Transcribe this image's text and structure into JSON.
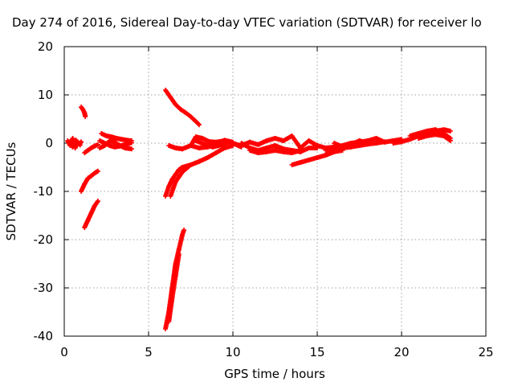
{
  "chart_data": {
    "type": "scatter",
    "title": "Day 274 of 2016, Sidereal Day-to-day VTEC variation (SDTVAR) for receiver lo",
    "xlabel": "GPS time / hours",
    "ylabel": "SDTVAR / TECUs",
    "xlim": [
      0,
      25
    ],
    "ylim": [
      -40,
      20
    ],
    "x_ticks": [
      0,
      5,
      10,
      15,
      20,
      25
    ],
    "y_ticks": [
      -40,
      -30,
      -20,
      -10,
      0,
      10,
      20
    ],
    "x_tick_labels": [
      "0",
      "5",
      "10",
      "15",
      "20",
      "25"
    ],
    "y_tick_labels": [
      "-40",
      "-30",
      "-20",
      "-10",
      "0",
      "10",
      "20"
    ],
    "grid": true,
    "marker": "+",
    "color": "#ff0000",
    "series": [
      {
        "segments": [
          [
            [
              0.2,
              0.5
            ],
            [
              0.35,
              -0.5
            ],
            [
              0.5,
              1.0
            ],
            [
              0.65,
              -1.0
            ],
            [
              0.8,
              0.2
            ],
            [
              0.95,
              -0.4
            ]
          ],
          [
            [
              0.3,
              0.3
            ],
            [
              0.5,
              -0.8
            ],
            [
              0.7,
              0.6
            ],
            [
              0.9,
              -0.2
            ],
            [
              1.0,
              0.3
            ]
          ],
          [
            [
              1.0,
              7.5
            ],
            [
              1.1,
              7.0
            ],
            [
              1.2,
              6.3
            ],
            [
              1.25,
              5.5
            ]
          ],
          [
            [
              1.0,
              -10.0
            ],
            [
              1.2,
              -8.5
            ],
            [
              1.4,
              -7.3
            ],
            [
              1.6,
              -6.8
            ],
            [
              1.8,
              -6.2
            ],
            [
              2.0,
              -5.8
            ]
          ],
          [
            [
              1.2,
              -17.5
            ],
            [
              1.4,
              -16.0
            ],
            [
              1.6,
              -14.5
            ],
            [
              1.8,
              -13.0
            ],
            [
              2.0,
              -12.0
            ]
          ],
          [
            [
              1.2,
              -2.0
            ],
            [
              1.4,
              -1.5
            ],
            [
              1.6,
              -1.0
            ],
            [
              1.8,
              -0.6
            ],
            [
              2.0,
              -0.3
            ]
          ],
          [
            [
              2.2,
              2.0
            ],
            [
              2.5,
              1.5
            ],
            [
              2.8,
              1.3
            ],
            [
              3.1,
              1.0
            ],
            [
              3.4,
              0.8
            ],
            [
              3.7,
              0.6
            ],
            [
              4.0,
              0.5
            ]
          ],
          [
            [
              2.1,
              0.5
            ],
            [
              2.4,
              0.0
            ],
            [
              2.7,
              -0.5
            ],
            [
              3.0,
              -0.8
            ],
            [
              3.3,
              -0.6
            ],
            [
              3.6,
              -0.3
            ],
            [
              4.0,
              0.1
            ]
          ],
          [
            [
              2.1,
              -1.0
            ],
            [
              2.4,
              -0.5
            ],
            [
              2.7,
              0.5
            ],
            [
              3.0,
              0.2
            ],
            [
              3.3,
              -0.5
            ],
            [
              3.6,
              -1.0
            ],
            [
              4.0,
              -1.2
            ]
          ],
          [
            [
              6.0,
              11.0
            ],
            [
              6.3,
              9.5
            ],
            [
              6.6,
              8.0
            ],
            [
              6.9,
              7.0
            ],
            [
              7.2,
              6.3
            ],
            [
              7.5,
              5.5
            ],
            [
              7.8,
              4.5
            ],
            [
              8.0,
              3.8
            ]
          ],
          [
            [
              6.0,
              -11.0
            ],
            [
              6.2,
              -9.0
            ],
            [
              6.4,
              -7.5
            ],
            [
              6.6,
              -6.5
            ],
            [
              6.8,
              -5.5
            ],
            [
              7.0,
              -5.0
            ],
            [
              7.5,
              -4.5
            ],
            [
              8.0,
              -3.8
            ],
            [
              8.5,
              -3.0
            ],
            [
              9.0,
              -2.0
            ],
            [
              9.5,
              -1.0
            ],
            [
              10.0,
              -0.5
            ]
          ],
          [
            [
              6.3,
              -11.0
            ],
            [
              6.6,
              -8.0
            ],
            [
              7.0,
              -6.0
            ],
            [
              7.5,
              -4.5
            ]
          ],
          [
            [
              6.0,
              -38.5
            ],
            [
              6.2,
              -35.0
            ],
            [
              6.4,
              -30.0
            ],
            [
              6.6,
              -25.0
            ],
            [
              6.8,
              -22.0
            ],
            [
              7.0,
              -19.0
            ],
            [
              7.1,
              -18.0
            ]
          ],
          [
            [
              6.2,
              -37.0
            ],
            [
              6.4,
              -32.0
            ],
            [
              6.6,
              -27.5
            ],
            [
              6.8,
              -23.0
            ]
          ],
          [
            [
              6.2,
              -0.5
            ],
            [
              6.6,
              -1.0
            ],
            [
              7.0,
              -1.2
            ],
            [
              7.5,
              -0.5
            ],
            [
              7.8,
              1.3
            ],
            [
              8.2,
              1.0
            ],
            [
              8.6,
              0.3
            ],
            [
              9.0,
              0.2
            ],
            [
              9.5,
              0.5
            ],
            [
              10.0,
              0.0
            ],
            [
              10.5,
              -0.6
            ]
          ],
          [
            [
              7.5,
              -0.5
            ],
            [
              8.0,
              -1.0
            ],
            [
              8.5,
              -0.8
            ],
            [
              9.0,
              -0.3
            ],
            [
              9.5,
              0.6
            ],
            [
              10.0,
              0.2
            ]
          ],
          [
            [
              7.8,
              0.5
            ],
            [
              8.3,
              -0.2
            ],
            [
              8.8,
              -0.8
            ],
            [
              9.3,
              -0.4
            ],
            [
              9.8,
              0.3
            ],
            [
              10.5,
              -0.8
            ]
          ],
          [
            [
              10.5,
              0.0
            ],
            [
              11.0,
              -1.0
            ],
            [
              11.5,
              -1.5
            ],
            [
              12.0,
              -1.0
            ],
            [
              12.5,
              -0.5
            ],
            [
              13.0,
              -1.2
            ],
            [
              13.5,
              -1.5
            ],
            [
              14.0,
              -1.8
            ],
            [
              14.5,
              -1.0
            ],
            [
              15.0,
              -1.0
            ]
          ],
          [
            [
              10.5,
              -0.5
            ],
            [
              11.0,
              0.2
            ],
            [
              11.5,
              -0.3
            ],
            [
              12.0,
              0.5
            ],
            [
              12.5,
              1.0
            ],
            [
              13.0,
              0.5
            ],
            [
              13.5,
              1.5
            ],
            [
              14.0,
              -1.0
            ],
            [
              14.5,
              0.5
            ],
            [
              15.0,
              -0.5
            ]
          ],
          [
            [
              11.0,
              -1.5
            ],
            [
              11.5,
              -2.0
            ],
            [
              12.0,
              -1.8
            ],
            [
              12.5,
              -1.5
            ],
            [
              13.0,
              -1.8
            ],
            [
              13.5,
              -2.0
            ],
            [
              14.0,
              -1.5
            ]
          ],
          [
            [
              13.5,
              -4.5
            ],
            [
              14.0,
              -4.0
            ],
            [
              14.5,
              -3.5
            ],
            [
              15.0,
              -3.0
            ],
            [
              15.5,
              -2.5
            ],
            [
              16.0,
              -1.8
            ],
            [
              16.5,
              -1.5
            ]
          ],
          [
            [
              15.0,
              -0.5
            ],
            [
              15.5,
              -1.0
            ],
            [
              16.0,
              -0.8
            ],
            [
              16.5,
              -0.5
            ],
            [
              17.0,
              0.0
            ],
            [
              17.5,
              0.2
            ],
            [
              18.0,
              0.5
            ],
            [
              18.5,
              1.0
            ],
            [
              19.0,
              0.2
            ],
            [
              19.5,
              0.5
            ],
            [
              20.0,
              0.8
            ]
          ],
          [
            [
              15.5,
              -1.5
            ],
            [
              16.0,
              -1.2
            ],
            [
              16.5,
              -1.0
            ],
            [
              17.0,
              -0.8
            ],
            [
              17.5,
              -0.5
            ],
            [
              18.0,
              -0.2
            ],
            [
              18.5,
              0.0
            ],
            [
              19.0,
              0.3
            ]
          ],
          [
            [
              16.0,
              0.0
            ],
            [
              16.5,
              -0.8
            ],
            [
              17.0,
              -0.3
            ],
            [
              17.5,
              0.5
            ],
            [
              18.0,
              0.0
            ]
          ],
          [
            [
              19.5,
              0.0
            ],
            [
              20.0,
              0.3
            ],
            [
              20.5,
              0.8
            ],
            [
              21.0,
              1.5
            ],
            [
              21.5,
              2.0
            ],
            [
              22.0,
              2.5
            ],
            [
              22.5,
              2.8
            ],
            [
              22.9,
              2.5
            ]
          ],
          [
            [
              20.5,
              1.5
            ],
            [
              21.0,
              2.0
            ],
            [
              21.5,
              2.5
            ],
            [
              22.0,
              2.8
            ],
            [
              22.5,
              2.0
            ],
            [
              22.9,
              1.0
            ]
          ],
          [
            [
              21.0,
              1.0
            ],
            [
              21.5,
              1.5
            ],
            [
              22.0,
              1.8
            ],
            [
              22.5,
              1.5
            ],
            [
              22.9,
              0.5
            ]
          ]
        ]
      }
    ]
  }
}
